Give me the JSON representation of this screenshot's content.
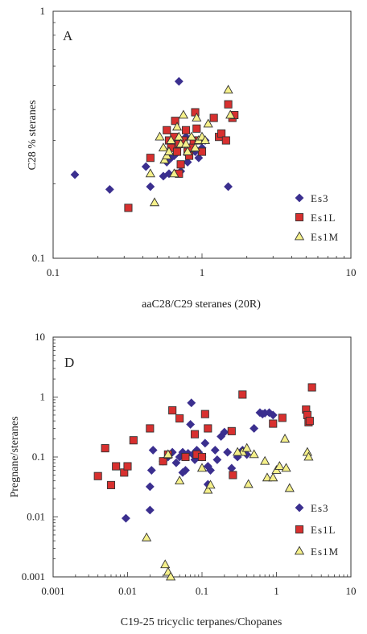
{
  "chart_data": [
    {
      "type": "scatter",
      "panel_label": "A",
      "xlabel": "aaC28/C29 steranes (20R)",
      "ylabel": "C28 % steranes",
      "xscale": "log",
      "yscale": "log",
      "xlim": [
        0.1,
        10
      ],
      "ylim": [
        0.1,
        1
      ],
      "x_tick_labels": [
        "0.1",
        "1",
        "10"
      ],
      "y_tick_labels": [
        "0.1",
        "1"
      ],
      "grid": false,
      "legend_position": "lower-right",
      "series": [
        {
          "name": "Es3",
          "marker": "diamond",
          "color": "#3b2f8f",
          "points": [
            [
              0.14,
              0.218
            ],
            [
              0.24,
              0.19
            ],
            [
              0.42,
              0.235
            ],
            [
              0.45,
              0.195
            ],
            [
              0.55,
              0.215
            ],
            [
              0.6,
              0.22
            ],
            [
              0.62,
              0.255
            ],
            [
              0.65,
              0.26
            ],
            [
              0.68,
              0.275
            ],
            [
              0.7,
              0.52
            ],
            [
              0.72,
              0.225
            ],
            [
              0.75,
              0.3
            ],
            [
              0.78,
              0.31
            ],
            [
              0.8,
              0.245
            ],
            [
              0.85,
              0.285
            ],
            [
              0.9,
              0.27
            ],
            [
              0.95,
              0.255
            ],
            [
              1.0,
              0.28
            ],
            [
              1.05,
              0.3
            ],
            [
              1.5,
              0.195
            ],
            [
              0.58,
              0.245
            ],
            [
              0.66,
              0.3
            ]
          ]
        },
        {
          "name": "Es1L",
          "marker": "square",
          "color": "#d8302f",
          "points": [
            [
              0.32,
              0.16
            ],
            [
              0.45,
              0.255
            ],
            [
              0.58,
              0.33
            ],
            [
              0.6,
              0.3
            ],
            [
              0.62,
              0.28
            ],
            [
              0.65,
              0.31
            ],
            [
              0.68,
              0.27
            ],
            [
              0.7,
              0.29
            ],
            [
              0.72,
              0.24
            ],
            [
              0.75,
              0.3
            ],
            [
              0.78,
              0.33
            ],
            [
              0.8,
              0.27
            ],
            [
              0.82,
              0.26
            ],
            [
              0.85,
              0.28
            ],
            [
              0.88,
              0.3
            ],
            [
              0.9,
              0.39
            ],
            [
              0.92,
              0.335
            ],
            [
              0.95,
              0.3
            ],
            [
              1.0,
              0.27
            ],
            [
              1.2,
              0.37
            ],
            [
              1.3,
              0.31
            ],
            [
              1.35,
              0.32
            ],
            [
              1.45,
              0.3
            ],
            [
              1.5,
              0.42
            ],
            [
              1.6,
              0.37
            ],
            [
              1.65,
              0.38
            ],
            [
              0.7,
              0.22
            ],
            [
              0.66,
              0.36
            ]
          ]
        },
        {
          "name": "Es1M",
          "marker": "triangle",
          "color": "#f5f08a",
          "points": [
            [
              0.48,
              0.168
            ],
            [
              0.45,
              0.22
            ],
            [
              0.52,
              0.31
            ],
            [
              0.55,
              0.28
            ],
            [
              0.56,
              0.25
            ],
            [
              0.58,
              0.26
            ],
            [
              0.6,
              0.27
            ],
            [
              0.62,
              0.3
            ],
            [
              0.65,
              0.22
            ],
            [
              0.68,
              0.34
            ],
            [
              0.7,
              0.31
            ],
            [
              0.72,
              0.29
            ],
            [
              0.75,
              0.38
            ],
            [
              0.78,
              0.29
            ],
            [
              0.8,
              0.27
            ],
            [
              0.85,
              0.31
            ],
            [
              0.9,
              0.28
            ],
            [
              0.92,
              0.37
            ],
            [
              0.95,
              0.3
            ],
            [
              1.0,
              0.31
            ],
            [
              1.05,
              0.3
            ],
            [
              1.1,
              0.35
            ],
            [
              1.5,
              0.48
            ],
            [
              1.55,
              0.38
            ]
          ]
        }
      ]
    },
    {
      "type": "scatter",
      "panel_label": "D",
      "xlabel": "C19-25 tricyclic terpanes/Chopanes",
      "ylabel": "Pregnane/steranes",
      "xscale": "log",
      "yscale": "log",
      "xlim": [
        0.001,
        10
      ],
      "ylim": [
        0.001,
        10
      ],
      "x_tick_labels": [
        "0.001",
        "0.01",
        "0.1",
        "1",
        "10"
      ],
      "y_tick_labels": [
        "0.001",
        "0.01",
        "0.1",
        "1",
        "10"
      ],
      "grid": false,
      "legend_position": "lower-right",
      "series": [
        {
          "name": "Es3",
          "marker": "diamond",
          "color": "#3b2f8f",
          "points": [
            [
              0.0095,
              0.0095
            ],
            [
              0.02,
              0.013
            ],
            [
              0.02,
              0.032
            ],
            [
              0.021,
              0.06
            ],
            [
              0.022,
              0.13
            ],
            [
              0.03,
              0.085
            ],
            [
              0.035,
              0.1
            ],
            [
              0.04,
              0.12
            ],
            [
              0.045,
              0.08
            ],
            [
              0.05,
              0.1
            ],
            [
              0.055,
              0.12
            ],
            [
              0.06,
              0.06
            ],
            [
              0.065,
              0.115
            ],
            [
              0.07,
              0.35
            ],
            [
              0.072,
              0.8
            ],
            [
              0.075,
              0.11
            ],
            [
              0.08,
              0.09
            ],
            [
              0.085,
              0.13
            ],
            [
              0.09,
              0.12
            ],
            [
              0.1,
              0.1
            ],
            [
              0.11,
              0.17
            ],
            [
              0.12,
              0.07
            ],
            [
              0.13,
              0.06
            ],
            [
              0.15,
              0.13
            ],
            [
              0.16,
              0.09
            ],
            [
              0.18,
              0.22
            ],
            [
              0.2,
              0.26
            ],
            [
              0.22,
              0.12
            ],
            [
              0.25,
              0.065
            ],
            [
              0.3,
              0.1
            ],
            [
              0.4,
              0.11
            ],
            [
              0.5,
              0.3
            ],
            [
              0.6,
              0.55
            ],
            [
              0.65,
              0.52
            ],
            [
              0.7,
              0.54
            ],
            [
              0.8,
              0.55
            ],
            [
              0.9,
              0.5
            ],
            [
              0.12,
              0.035
            ],
            [
              0.35,
              0.13
            ],
            [
              0.055,
              0.055
            ]
          ]
        },
        {
          "name": "Es1L",
          "marker": "square",
          "color": "#d8302f",
          "points": [
            [
              0.004,
              0.048
            ],
            [
              0.005,
              0.14
            ],
            [
              0.006,
              0.034
            ],
            [
              0.007,
              0.07
            ],
            [
              0.009,
              0.055
            ],
            [
              0.01,
              0.07
            ],
            [
              0.012,
              0.19
            ],
            [
              0.02,
              0.3
            ],
            [
              0.03,
              0.085
            ],
            [
              0.035,
              0.11
            ],
            [
              0.04,
              0.6
            ],
            [
              0.05,
              0.44
            ],
            [
              0.06,
              0.1
            ],
            [
              0.08,
              0.24
            ],
            [
              0.085,
              0.11
            ],
            [
              0.1,
              0.1
            ],
            [
              0.11,
              0.52
            ],
            [
              0.12,
              0.3
            ],
            [
              0.25,
              0.27
            ],
            [
              0.26,
              0.05
            ],
            [
              0.35,
              1.1
            ],
            [
              0.9,
              0.36
            ],
            [
              1.2,
              0.45
            ],
            [
              2.5,
              0.62
            ],
            [
              2.6,
              0.5
            ],
            [
              2.7,
              0.38
            ],
            [
              3.0,
              1.45
            ],
            [
              2.8,
              0.4
            ]
          ]
        },
        {
          "name": "Es1M",
          "marker": "triangle",
          "color": "#f5f08a",
          "points": [
            [
              0.018,
              0.0045
            ],
            [
              0.032,
              0.0016
            ],
            [
              0.035,
              0.0012
            ],
            [
              0.038,
              0.001
            ],
            [
              0.035,
              0.11
            ],
            [
              0.05,
              0.04
            ],
            [
              0.1,
              0.065
            ],
            [
              0.12,
              0.028
            ],
            [
              0.13,
              0.034
            ],
            [
              0.35,
              0.12
            ],
            [
              0.4,
              0.14
            ],
            [
              0.42,
              0.035
            ],
            [
              0.5,
              0.11
            ],
            [
              0.7,
              0.085
            ],
            [
              0.75,
              0.045
            ],
            [
              0.9,
              0.045
            ],
            [
              1.0,
              0.06
            ],
            [
              1.1,
              0.07
            ],
            [
              1.3,
              0.2
            ],
            [
              1.35,
              0.065
            ],
            [
              1.5,
              0.03
            ],
            [
              2.6,
              0.12
            ],
            [
              2.7,
              0.1
            ],
            [
              0.3,
              0.12
            ]
          ]
        }
      ]
    }
  ]
}
